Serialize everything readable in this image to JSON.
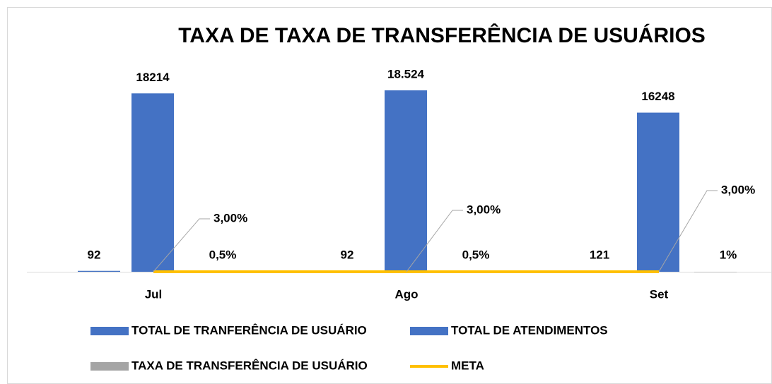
{
  "chart_data": {
    "type": "bar",
    "title": "TAXA DE TAXA DE TRANSFERÊNCIA DE USUÁRIOS",
    "categories": [
      "Jul",
      "Ago",
      "Set"
    ],
    "series": [
      {
        "name": "TOTAL DE TRANFERÊNCIA DE USUÁRIO",
        "color": "#4472c4",
        "values": [
          92,
          92,
          121
        ]
      },
      {
        "name": "TOTAL DE ATENDIMENTOS",
        "color": "#4472c4",
        "values": [
          18214,
          18524,
          16248
        ],
        "value_labels": [
          "18214",
          "18.524",
          "16248"
        ]
      },
      {
        "name": "TAXA DE TRANSFERÊNCIA DE USUÁRIO",
        "color": "#a5a5a5",
        "values": [
          0.5,
          0.5,
          1
        ],
        "value_labels": [
          "0,5%",
          "0,5%",
          "1%"
        ]
      },
      {
        "name": "META",
        "type": "line",
        "color": "#ffc000",
        "values": [
          3,
          3,
          3
        ],
        "value_labels": [
          "3,00%",
          "3,00%",
          "3,00%"
        ]
      }
    ],
    "ylim": [
      0,
      20000
    ],
    "legend": "bottom"
  }
}
